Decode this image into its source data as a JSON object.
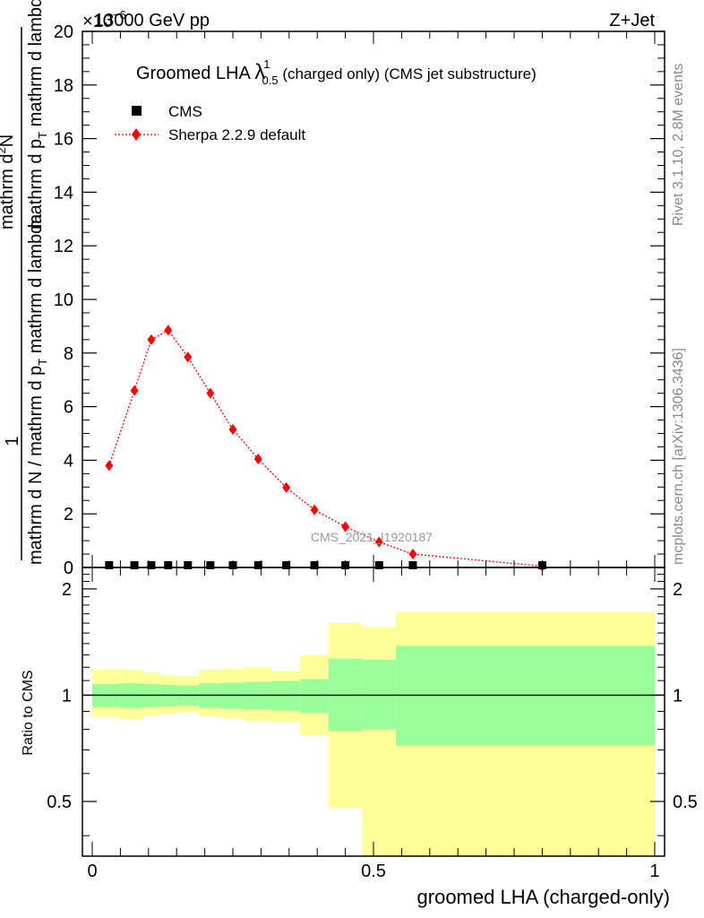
{
  "header": {
    "energy_label": "13000 GeV pp",
    "process_label": "Z+Jet",
    "exponent_label": "×10",
    "exponent_power": "−6"
  },
  "side": {
    "rivet_label": "Rivet 3.1.10,  2.8M events",
    "mcplots_label": "mcplots.cern.ch [arXiv:1306.3436]"
  },
  "watermark": "CMS_2021_I1920187",
  "colors": {
    "sherpa": "#ff0000",
    "band_inner": "#99ff99",
    "band_outer": "#ffff99",
    "cms": "#000000"
  },
  "chart_data": [
    {
      "type": "scatter",
      "title_main": "Groomed LHA ",
      "title_lambda": "λ",
      "title_sup": "1",
      "title_sub": "0.5",
      "title_tail": "  (charged only) (CMS jet substructure)",
      "ylabel": {
        "one": "1",
        "numerator": "mathrm d N / mathrm d p",
        "numerator_sub": "T",
        "numerator_tail": " mathrm d lambda",
        "denominator": "mathrm d N / mathrm d p",
        "denominator_sub": "T",
        "denominator_tail": " mathrm d lambda",
        "frac_top": "mathrm d",
        "frac_top_sup": "2",
        "frac_top_tail": "N",
        "frac_bottom": "mathrm d p",
        "frac_bottom_sub": "T",
        "frac_bottom_tail": " mathrm d lambda"
      },
      "ylim": [
        0,
        20
      ],
      "yticks": [
        0,
        2,
        4,
        6,
        8,
        10,
        12,
        14,
        16,
        18,
        20
      ],
      "yscale_note": "×10^-6",
      "legend": [
        {
          "name": "CMS",
          "marker": "square"
        },
        {
          "name": "Sherpa 2.2.9 default",
          "marker": "diamond"
        }
      ],
      "legend_position": "top-left",
      "cms_x": [
        0.03,
        0.075,
        0.105,
        0.135,
        0.17,
        0.21,
        0.25,
        0.295,
        0.345,
        0.395,
        0.45,
        0.51,
        0.57,
        0.8
      ],
      "cms_y": [
        0.05,
        0.05,
        0.05,
        0.05,
        0.05,
        0.05,
        0.05,
        0.05,
        0.05,
        0.05,
        0.05,
        0.05,
        0.05,
        0.05
      ],
      "series": [
        {
          "name": "Sherpa 2.2.9 default",
          "x": [
            0.03,
            0.075,
            0.105,
            0.135,
            0.17,
            0.21,
            0.25,
            0.295,
            0.345,
            0.395,
            0.45,
            0.51,
            0.57,
            0.8
          ],
          "y": [
            3.8,
            6.6,
            8.5,
            8.85,
            7.85,
            6.5,
            5.15,
            4.05,
            2.98,
            2.15,
            1.52,
            0.95,
            0.5,
            0.05
          ]
        }
      ]
    },
    {
      "type": "area",
      "ylabel": "Ratio to CMS",
      "xlabel": "groomed LHA (charged-only)",
      "xlim": [
        0,
        1
      ],
      "xticks": [
        0,
        0.5,
        1
      ],
      "xtick_labels": [
        "0",
        "0.5",
        "1"
      ],
      "ylim": [
        0.35,
        2.3
      ],
      "yscale": "log",
      "yticks": [
        0.5,
        1,
        2
      ],
      "ytick_labels": [
        "0.5",
        "1",
        "2"
      ],
      "bin_edges": [
        0,
        0.05,
        0.09,
        0.12,
        0.15,
        0.19,
        0.23,
        0.27,
        0.32,
        0.37,
        0.42,
        0.48,
        0.54,
        1.0
      ],
      "inner_band": {
        "low": [
          0.925,
          0.92,
          0.925,
          0.93,
          0.935,
          0.92,
          0.915,
          0.91,
          0.905,
          0.89,
          0.79,
          0.8,
          0.72
        ],
        "high": [
          1.075,
          1.08,
          1.075,
          1.07,
          1.065,
          1.08,
          1.085,
          1.09,
          1.095,
          1.11,
          1.27,
          1.26,
          1.38
        ]
      },
      "outer_band": {
        "low": [
          0.865,
          0.855,
          0.875,
          0.885,
          0.895,
          0.87,
          0.86,
          0.845,
          0.84,
          0.77,
          0.48,
          0.34,
          0.34
        ],
        "high": [
          1.185,
          1.18,
          1.16,
          1.14,
          1.13,
          1.18,
          1.19,
          1.2,
          1.17,
          1.3,
          1.6,
          1.56,
          1.72
        ]
      },
      "reference": 1
    }
  ]
}
